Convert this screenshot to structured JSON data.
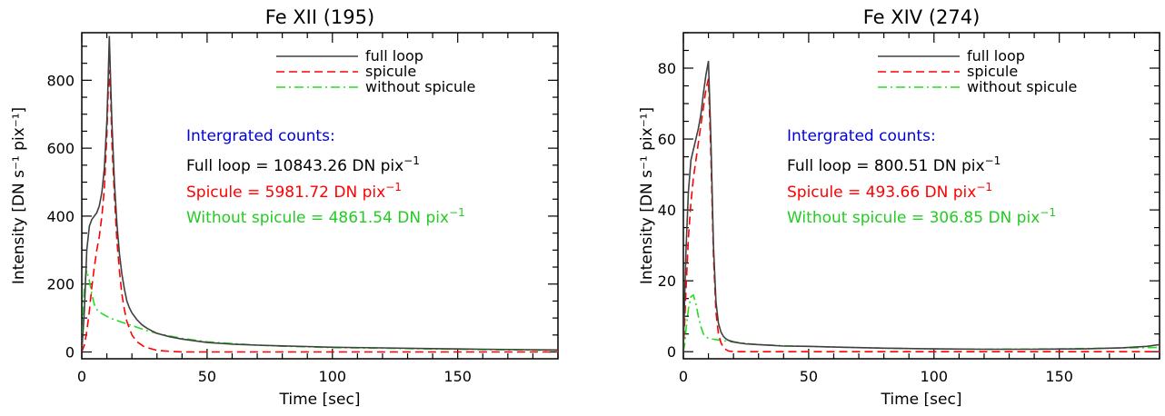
{
  "chart_data": [
    {
      "type": "line",
      "title": "Fe XII (195)",
      "xlabel": "Time [sec]",
      "ylabel": "Intensity [DN s⁻¹ pix⁻¹]",
      "xlim": [
        0,
        190
      ],
      "ylim": [
        -20,
        940
      ],
      "xticks": [
        0,
        50,
        100,
        150
      ],
      "yticks": [
        0,
        200,
        400,
        600,
        800
      ],
      "legend_position": "top-right",
      "series": [
        {
          "name": "full loop",
          "color": "#404040",
          "style": "solid",
          "x": [
            0,
            1,
            2,
            3,
            4,
            5,
            6,
            7,
            8,
            9,
            10,
            10.5,
            11,
            11.5,
            12,
            13,
            14,
            15,
            16,
            17,
            18,
            19,
            20,
            22,
            24,
            26,
            28,
            30,
            35,
            40,
            45,
            50,
            60,
            70,
            80,
            90,
            100,
            120,
            140,
            160,
            190
          ],
          "y": [
            0,
            120,
            300,
            370,
            390,
            400,
            410,
            430,
            470,
            540,
            680,
            800,
            930,
            800,
            680,
            500,
            380,
            290,
            230,
            185,
            150,
            130,
            115,
            95,
            80,
            70,
            62,
            55,
            45,
            38,
            33,
            28,
            23,
            20,
            18,
            16,
            14,
            12,
            10,
            8,
            6
          ]
        },
        {
          "name": "spicule",
          "color": "#ff0000",
          "style": "dashed",
          "x": [
            0,
            1,
            2,
            3,
            4,
            5,
            6,
            7,
            8,
            9,
            10,
            10.5,
            11,
            11.5,
            12,
            13,
            14,
            15,
            16,
            17,
            18,
            20,
            22,
            25,
            30,
            35,
            40,
            50,
            60,
            80,
            100,
            150,
            190
          ],
          "y": [
            0,
            20,
            60,
            120,
            190,
            250,
            300,
            340,
            400,
            480,
            640,
            760,
            830,
            760,
            620,
            460,
            330,
            240,
            170,
            125,
            90,
            50,
            30,
            15,
            5,
            2,
            0,
            0,
            0,
            0,
            0,
            0,
            0
          ]
        },
        {
          "name": "without spicule",
          "color": "#22dd22",
          "style": "dashdot",
          "x": [
            0,
            1,
            2,
            3,
            4,
            5,
            6,
            7,
            8,
            10,
            12,
            15,
            20,
            25,
            30,
            40,
            50,
            60,
            70,
            80,
            90,
            100,
            120,
            140,
            160,
            190
          ],
          "y": [
            0,
            200,
            240,
            210,
            170,
            140,
            125,
            118,
            113,
            105,
            98,
            90,
            78,
            65,
            55,
            40,
            30,
            25,
            20,
            17,
            15,
            13,
            11,
            9,
            7,
            5
          ]
        }
      ],
      "annotations": {
        "heading": "Intergrated counts:",
        "full_prefix": "Full loop = ",
        "full_value": "10843.26",
        "full_unit": " DN pix",
        "spicule_prefix": "Spicule =  ",
        "spicule_value": "5981.72",
        "spicule_unit": " DN pix",
        "without_prefix": "Without spicule =  ",
        "without_value": "4861.54",
        "without_unit": " DN pix",
        "exponent": "−1"
      }
    },
    {
      "type": "line",
      "title": "Fe XIV (274)",
      "xlabel": "Time [sec]",
      "ylabel": "Intensity [DN s⁻¹ pix⁻¹]",
      "xlim": [
        0,
        190
      ],
      "ylim": [
        -2,
        90
      ],
      "xticks": [
        0,
        50,
        100,
        150
      ],
      "yticks": [
        0,
        20,
        40,
        60,
        80
      ],
      "legend_position": "top-right",
      "series": [
        {
          "name": "full loop",
          "color": "#404040",
          "style": "solid",
          "x": [
            0,
            0.5,
            1,
            2,
            3,
            4,
            5,
            6,
            7,
            8,
            9,
            10,
            11,
            12,
            13,
            14,
            15,
            16,
            17,
            18,
            20,
            22,
            25,
            30,
            35,
            40,
            50,
            60,
            80,
            100,
            120,
            140,
            160,
            175,
            185,
            190
          ],
          "y": [
            0,
            15,
            28,
            45,
            54,
            57,
            60,
            63,
            67,
            73,
            78,
            82,
            60,
            30,
            14,
            8,
            5.5,
            4.3,
            3.6,
            3.2,
            2.8,
            2.5,
            2.2,
            2.0,
            1.8,
            1.6,
            1.5,
            1.3,
            1.0,
            0.8,
            0.7,
            0.7,
            0.8,
            1.1,
            1.5,
            2.0
          ]
        },
        {
          "name": "spicule",
          "color": "#ff0000",
          "style": "dashed",
          "x": [
            0,
            0.5,
            1,
            2,
            3,
            4,
            5,
            6,
            7,
            8,
            9,
            10,
            11,
            12,
            13,
            14,
            15,
            16,
            17,
            18,
            20,
            25,
            30,
            50,
            100,
            150,
            190
          ],
          "y": [
            0,
            8,
            17,
            32,
            42,
            49,
            54,
            59,
            64,
            69,
            74,
            77,
            55,
            27,
            11,
            5,
            2.5,
            1.2,
            0.6,
            0.2,
            0,
            0,
            0,
            0,
            0,
            0,
            0
          ]
        },
        {
          "name": "without spicule",
          "color": "#22dd22",
          "style": "dashdot",
          "x": [
            0,
            0.5,
            1,
            2,
            3,
            4,
            5,
            6,
            7,
            8,
            9,
            10,
            11,
            12,
            13,
            14,
            15,
            16,
            17,
            18,
            20,
            25,
            30,
            40,
            50,
            60,
            80,
            100,
            120,
            150,
            190
          ],
          "y": [
            0,
            2,
            6,
            12,
            15.5,
            16,
            13.5,
            10,
            7,
            5,
            4.2,
            3.8,
            3.6,
            3.5,
            3.4,
            3.3,
            3.2,
            3.1,
            3.0,
            2.9,
            2.7,
            2.3,
            2.0,
            1.7,
            1.5,
            1.3,
            1.0,
            0.8,
            0.7,
            0.8,
            1.2
          ]
        }
      ],
      "annotations": {
        "heading": "Intergrated counts:",
        "full_prefix": "Full loop = ",
        "full_value": "800.51",
        "full_unit": " DN pix",
        "spicule_prefix": "Spicule = ",
        "spicule_value": "493.66",
        "spicule_unit": " DN pix",
        "without_prefix": "Without spicule = ",
        "without_value": "306.85",
        "without_unit": " DN pix",
        "exponent": "−1"
      }
    }
  ],
  "colors": {
    "heading": "#0000dd",
    "full": "#000000",
    "spicule": "#ff0000",
    "without": "#22cc22"
  }
}
